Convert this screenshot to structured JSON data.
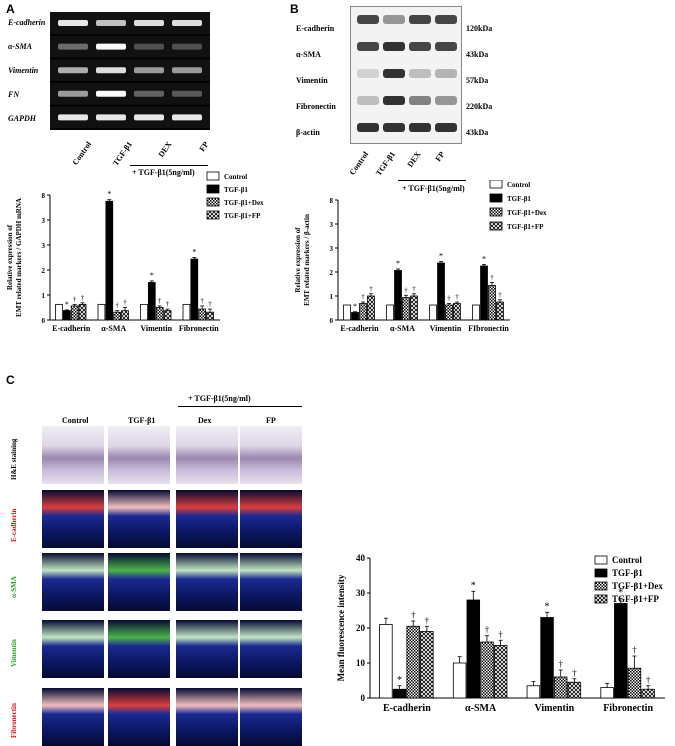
{
  "panels": {
    "a": "A",
    "b": "B",
    "c": "C"
  },
  "panel_a": {
    "gel_rows": [
      "E-cadherin",
      "α-SMA",
      "Vimentin",
      "FN",
      "GAPDH"
    ],
    "lanes": [
      "Control",
      "TGF-β1",
      "DEX",
      "FP"
    ],
    "treatment_header": "+ TGF-β1(5ng/ml)"
  },
  "panel_b": {
    "blot_rows": [
      "E-cadherin",
      "α-SMA",
      "Vimentin",
      "Fibronectin",
      "β-actin"
    ],
    "sizes": [
      "120kDa",
      "43kDa",
      "57kDa",
      "220kDa",
      "43kDa"
    ],
    "lanes": [
      "Control",
      "TGF-β1",
      "DEX",
      "FP"
    ],
    "treatment_header": "+ TGF-β1(5ng/ml)"
  },
  "panel_c": {
    "columns": [
      "Control",
      "TGF-β1",
      "Dex",
      "FP"
    ],
    "treatment_header": "+ TGF-β1(5ng/ml)",
    "rows": [
      "H&E staining",
      "E-cadherin",
      "α-SMA",
      "Vimentin",
      "Fibronectin"
    ],
    "row_colors": [
      "#000000",
      "#d01010",
      "#20a020",
      "#20a020",
      "#d01010"
    ]
  },
  "legend": [
    "Control",
    "TGF-β1",
    "TGF-β1+Dex",
    "TGF-β1+FP"
  ],
  "marks": {
    "star": "*",
    "dagger": "†"
  },
  "chart_data": [
    {
      "type": "bar",
      "ylabel": "Relative expression of EMT related markers / GAPDH mRNA",
      "categories": [
        "E-cadherin",
        "α-SMA",
        "Vimentin",
        "Fibronectin"
      ],
      "ylim": [
        0,
        8
      ],
      "yticks": [
        "0",
        "1",
        "2",
        "3",
        "3",
        "8"
      ],
      "series": [
        {
          "name": "Control",
          "values": [
            1.0,
            1.0,
            1.0,
            1.0
          ],
          "err": [
            0,
            0,
            0,
            0
          ]
        },
        {
          "name": "TGF-β1",
          "values": [
            0.6,
            7.6,
            2.4,
            3.9
          ],
          "err": [
            0.05,
            0.1,
            0.1,
            0.1
          ]
        },
        {
          "name": "TGF-β1+Dex",
          "values": [
            0.9,
            0.5,
            0.8,
            0.7
          ],
          "err": [
            0.1,
            0.1,
            0.1,
            0.2
          ]
        },
        {
          "name": "TGF-β1+FP",
          "values": [
            1.0,
            0.6,
            0.6,
            0.5
          ],
          "err": [
            0.1,
            0.2,
            0.1,
            0.2
          ]
        }
      ]
    },
    {
      "type": "bar",
      "ylabel": "Relative expression of EMT related markers / β-actin",
      "categories": [
        "E-cadherin",
        "α-SMA",
        "Vimentin",
        "FIbronectin"
      ],
      "ylim": [
        0,
        8
      ],
      "yticks": [
        "0",
        "1",
        "2",
        "3",
        "3",
        "8"
      ],
      "series": [
        {
          "name": "Control",
          "values": [
            1.0,
            1.0,
            1.0,
            1.0
          ],
          "err": [
            0,
            0,
            0,
            0
          ]
        },
        {
          "name": "TGF-β1",
          "values": [
            0.5,
            3.3,
            3.8,
            3.6
          ],
          "err": [
            0.05,
            0.1,
            0.1,
            0.1
          ]
        },
        {
          "name": "TGF-β1+Dex",
          "values": [
            1.1,
            1.5,
            1.0,
            2.3
          ],
          "err": [
            0.1,
            0.15,
            0.1,
            0.2
          ]
        },
        {
          "name": "TGF-β1+FP",
          "values": [
            1.6,
            1.6,
            1.1,
            1.2
          ],
          "err": [
            0.15,
            0.15,
            0.1,
            0.15
          ]
        }
      ]
    },
    {
      "type": "bar",
      "ylabel": "Mean fluorescence intensity",
      "categories": [
        "E-cadherin",
        "α-SMA",
        "Vimentin",
        "Fibronectin"
      ],
      "ylim": [
        0,
        40
      ],
      "yticks": [
        "0",
        "10",
        "20",
        "30",
        "40"
      ],
      "series": [
        {
          "name": "Control",
          "values": [
            21,
            10,
            3.5,
            3
          ],
          "err": [
            1.8,
            1.8,
            1.2,
            1.2
          ]
        },
        {
          "name": "TGF-β1",
          "values": [
            2.5,
            28,
            23,
            27
          ],
          "err": [
            1,
            2.5,
            1.5,
            1.5
          ]
        },
        {
          "name": "TGF-β1+Dex",
          "values": [
            20.5,
            16,
            6,
            8.5
          ],
          "err": [
            1.5,
            1.8,
            2,
            3.5
          ]
        },
        {
          "name": "TGF-β1+FP",
          "values": [
            19,
            15,
            4.5,
            2.5
          ],
          "err": [
            1.5,
            1.5,
            1,
            1
          ]
        }
      ]
    }
  ]
}
